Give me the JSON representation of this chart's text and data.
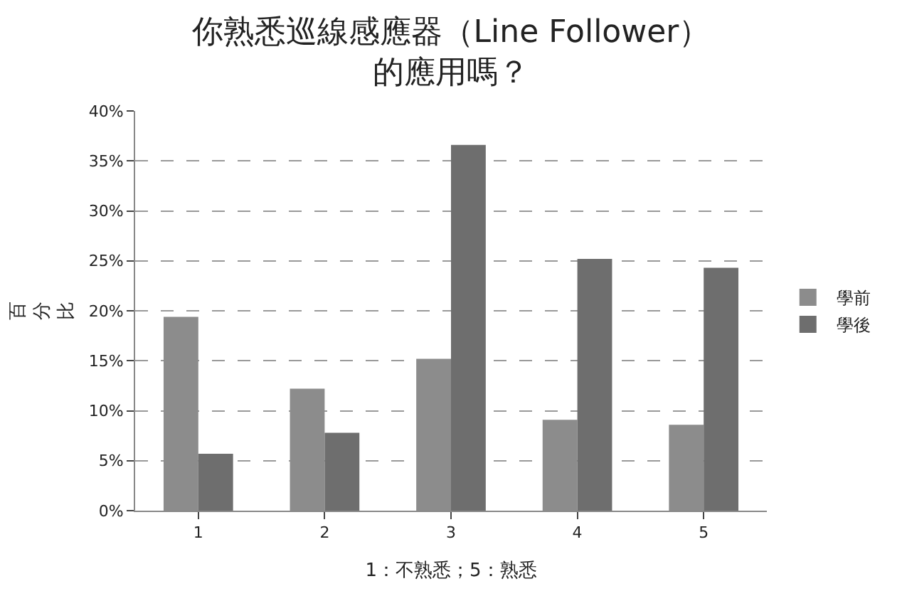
{
  "chart_data": {
    "type": "bar",
    "title": "你熟悉巡線感應器（Line Follower）的應用嗎？",
    "xlabel": "1：不熟悉；5：熟悉",
    "ylabel": "百分比",
    "categories": [
      "1",
      "2",
      "3",
      "4",
      "5"
    ],
    "series": [
      {
        "name": "學前",
        "color": "#8c8c8c",
        "values": [
          19.4,
          12.2,
          15.2,
          9.1,
          8.6
        ]
      },
      {
        "name": "學後",
        "color": "#6e6e6e",
        "values": [
          5.7,
          7.8,
          36.6,
          25.2,
          24.3
        ]
      }
    ],
    "ylim": [
      0,
      40
    ],
    "yticks": [
      {
        "value": 0,
        "label": "0%"
      },
      {
        "value": 5,
        "label": "5%"
      },
      {
        "value": 10,
        "label": "10%"
      },
      {
        "value": 15,
        "label": "15%"
      },
      {
        "value": 20,
        "label": "20%"
      },
      {
        "value": 25,
        "label": "25%"
      },
      {
        "value": 30,
        "label": "30%"
      },
      {
        "value": 35,
        "label": "35%"
      },
      {
        "value": 40,
        "label": "40%"
      }
    ],
    "grid": "y",
    "legend": "right"
  }
}
